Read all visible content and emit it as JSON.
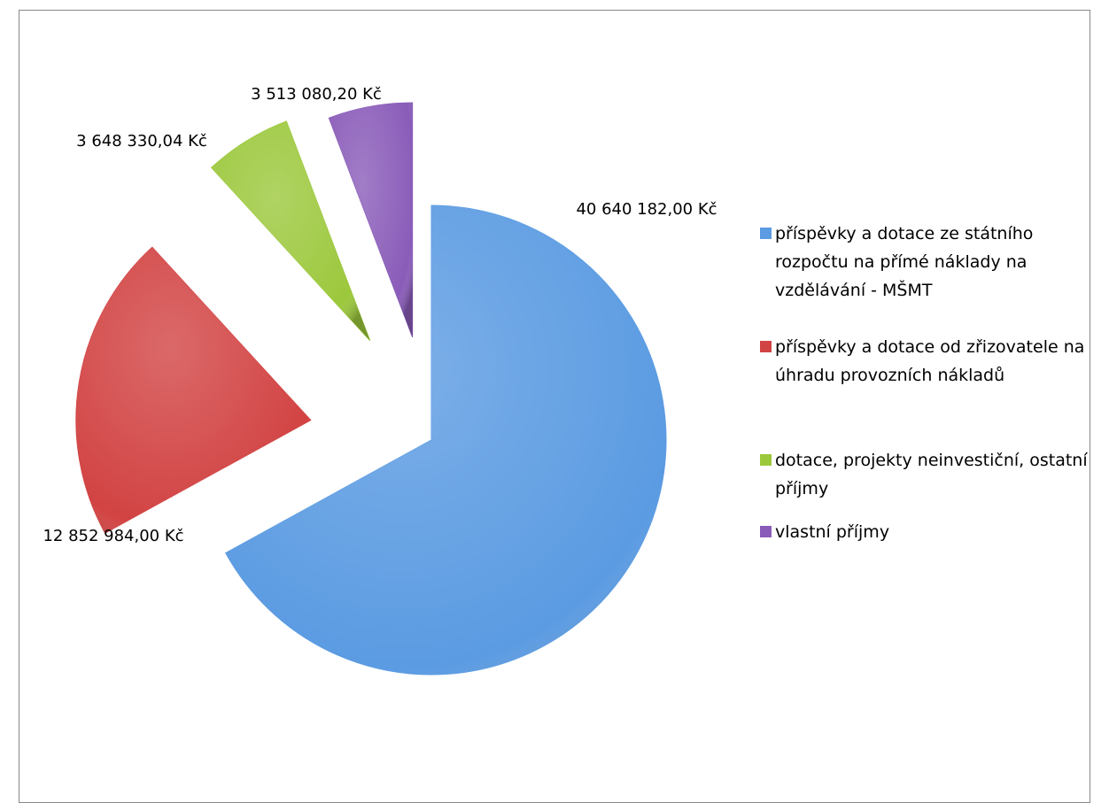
{
  "chart_data": {
    "type": "pie",
    "categories": [
      "příspěvky a dotace ze státního rozpočtu na přímé náklady na vzdělávání - MŠMT",
      "příspěvky a dotace od zřizovatele na úhradu provozních nákladů",
      "dotace, projekty neinvestiční, ostatní příjmy",
      "vlastní příjmy"
    ],
    "values": [
      40640182,
      12852984,
      3648330.04,
      3513080.2
    ],
    "value_labels": [
      "40 640 182,00 Kč",
      "12 852 984,00 Kč",
      "3 648 330,04 Kč",
      "3 513 080,20 Kč"
    ],
    "colors": [
      "#5b9be2",
      "#d24343",
      "#9cc83c",
      "#8a5cb9"
    ],
    "legend": "right"
  }
}
